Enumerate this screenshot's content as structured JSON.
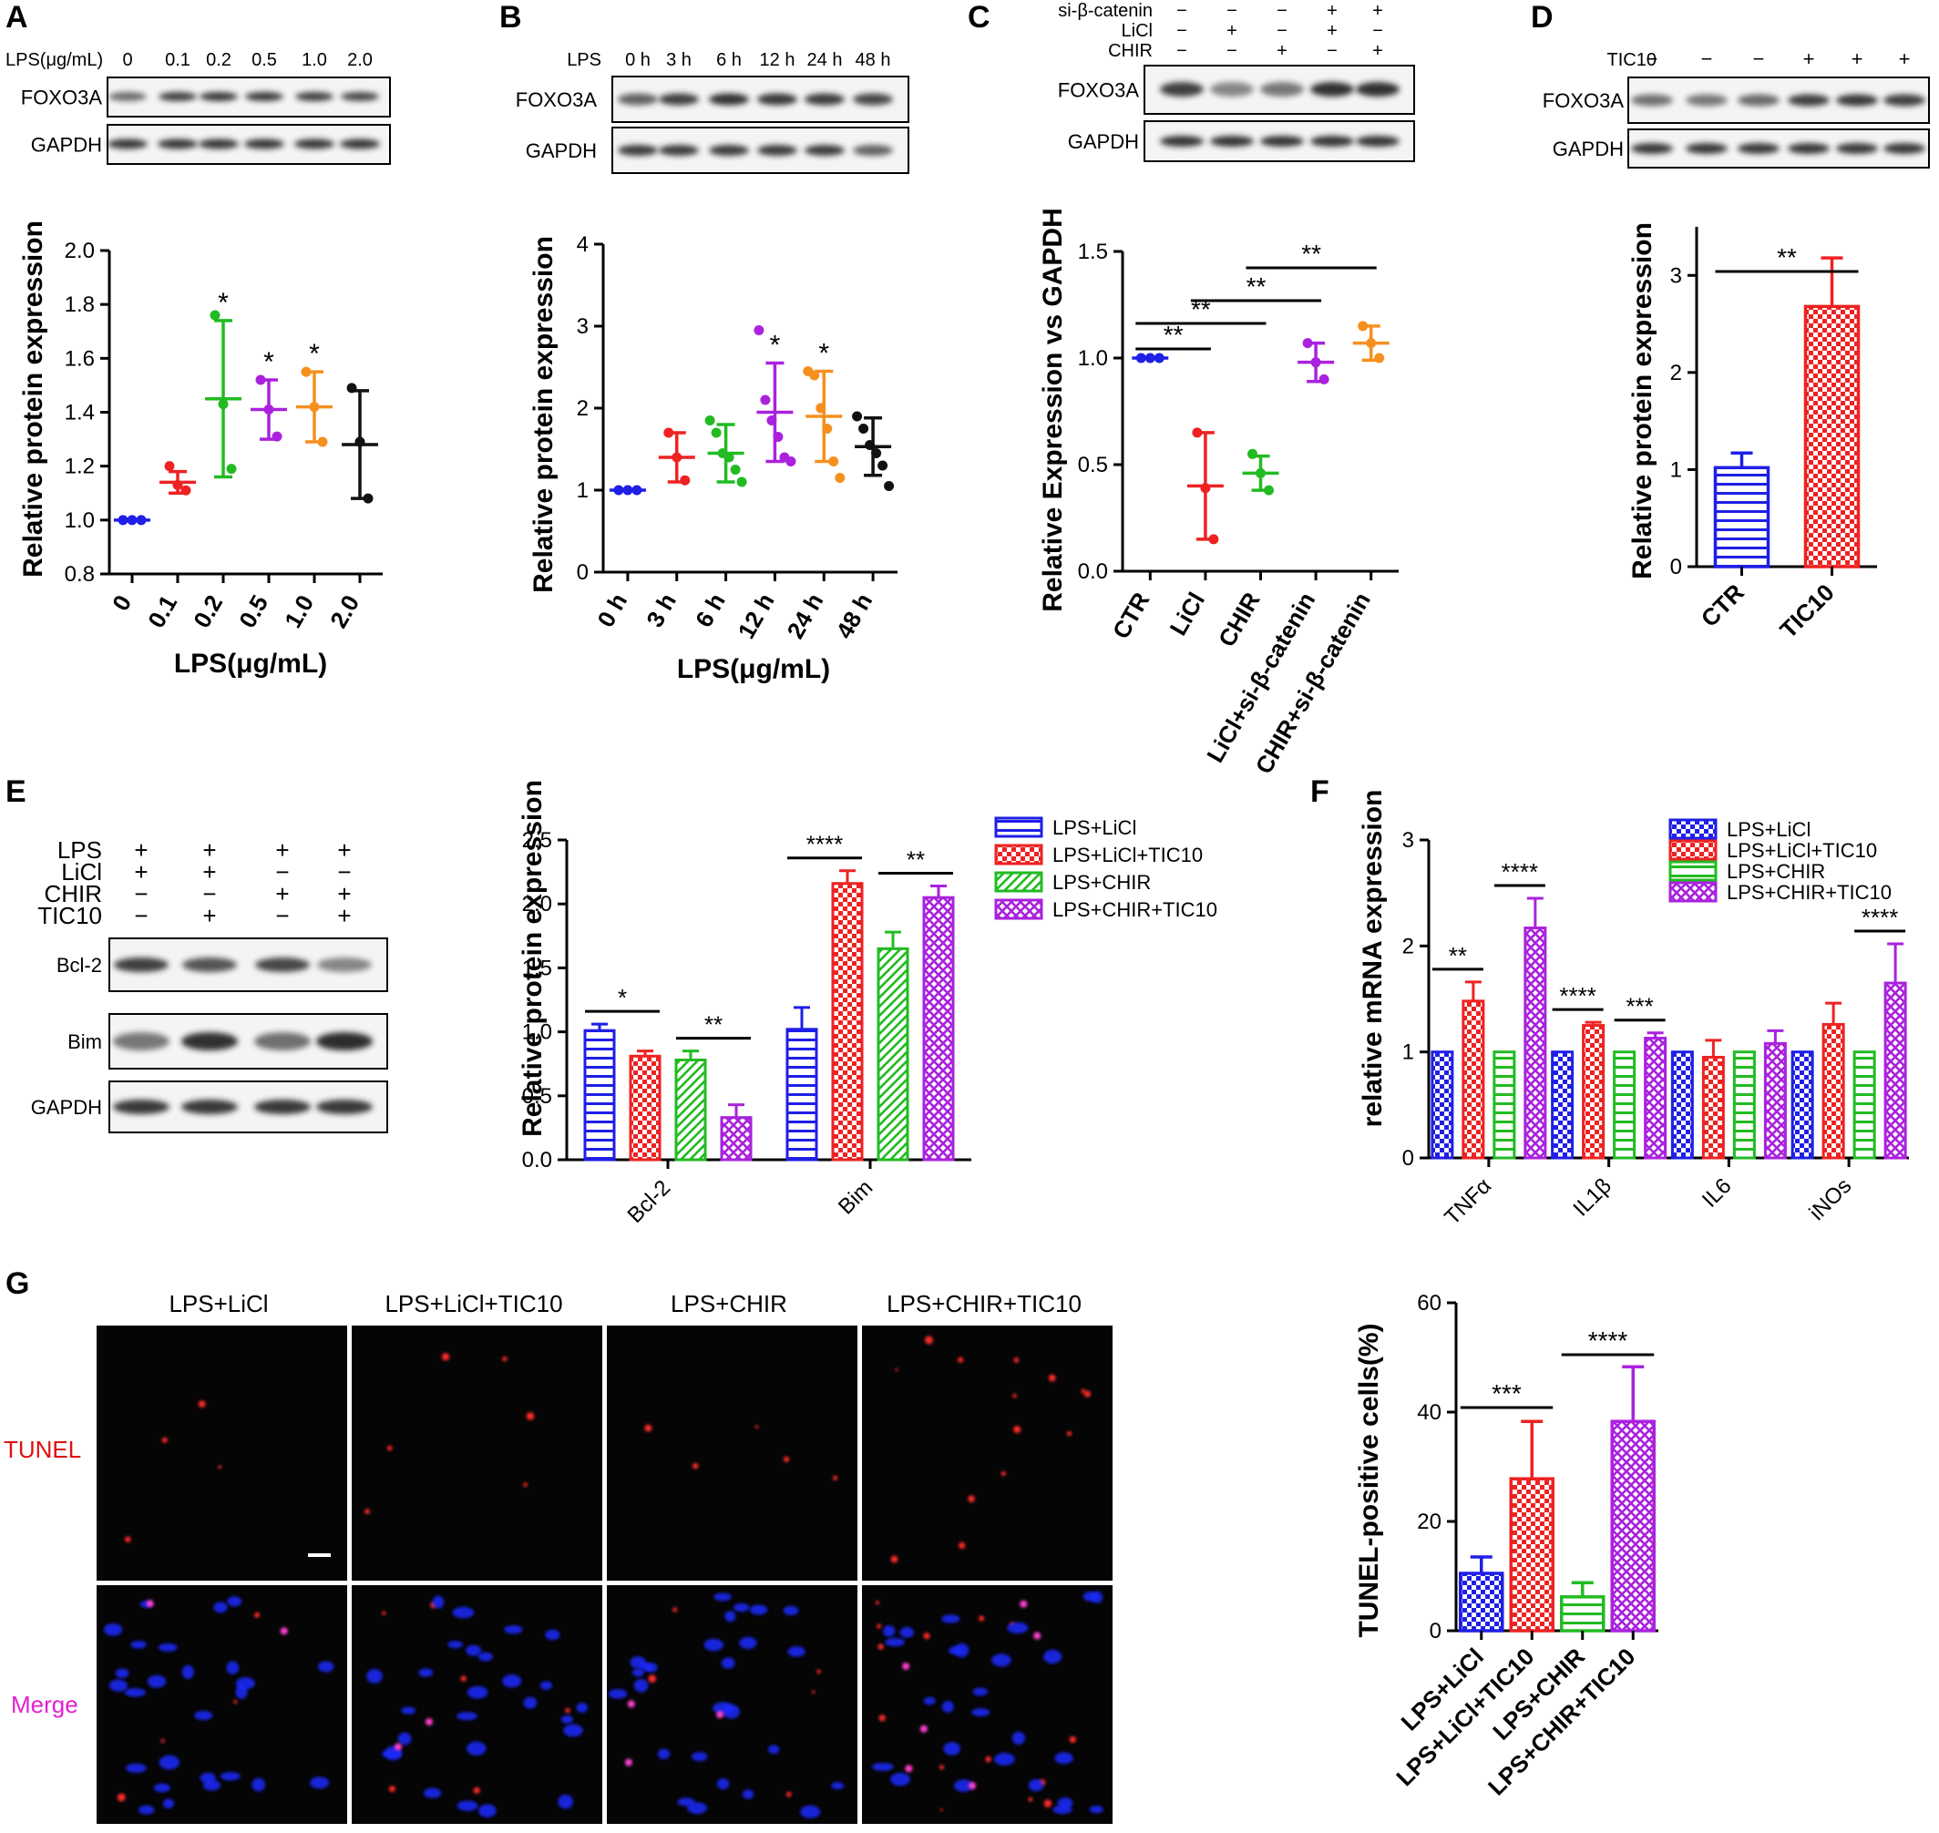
{
  "colors": {
    "blue": "#1f1fe6",
    "red": "#ee2222",
    "green": "#22bb22",
    "purple": "#aa22dd",
    "orange": "#f5901e",
    "black": "#111111",
    "bg": "#ffffff",
    "micro_bg": "#050505"
  },
  "panels": {
    "A": {
      "letter": "A",
      "blot": {
        "header_label": "LPS(μg/mL)",
        "lanes": [
          "0",
          "0.1",
          "0.2",
          "0.5",
          "1.0",
          "2.0"
        ],
        "row_labels": [
          "FOXO3A",
          "GAPDH"
        ]
      },
      "chart_data": {
        "type": "scatter",
        "ylabel": "Relative protein expression",
        "xlabel": "LPS(μg/mL)",
        "categories": [
          "0",
          "0.1",
          "0.2",
          "0.5",
          "1.0",
          "2.0"
        ],
        "ylim": [
          0.8,
          2.0
        ],
        "yticks": [
          "0.8",
          "1.0",
          "1.2",
          "1.4",
          "1.6",
          "1.8",
          "2.0"
        ],
        "means": [
          1.0,
          1.14,
          1.45,
          1.41,
          1.42,
          1.28
        ],
        "sd": [
          0.0,
          0.04,
          0.29,
          0.11,
          0.13,
          0.2
        ],
        "points": [
          [
            1.0,
            1.0,
            1.0
          ],
          [
            1.2,
            1.13,
            1.11
          ],
          [
            1.76,
            1.43,
            1.19
          ],
          [
            1.52,
            1.41,
            1.31
          ],
          [
            1.55,
            1.42,
            1.29
          ],
          [
            1.49,
            1.29,
            1.08
          ]
        ],
        "sig": [
          "",
          "",
          "*",
          "*",
          "*",
          ""
        ]
      }
    },
    "B": {
      "letter": "B",
      "blot": {
        "header_label": "LPS",
        "lanes": [
          "0 h",
          "3 h",
          "6 h",
          "12 h",
          "24 h",
          "48 h"
        ],
        "row_labels": [
          "FOXO3A",
          "GAPDH"
        ]
      },
      "chart_data": {
        "type": "scatter",
        "ylabel": "Relative protein expression",
        "xlabel": "LPS(μg/mL)",
        "categories": [
          "0 h",
          "3 h",
          "6 h",
          "12 h",
          "24 h",
          "48 h"
        ],
        "ylim": [
          0,
          4
        ],
        "yticks": [
          "0",
          "1",
          "2",
          "3",
          "4"
        ],
        "means": [
          1.0,
          1.4,
          1.45,
          1.95,
          1.9,
          1.53
        ],
        "sd": [
          0.0,
          0.3,
          0.35,
          0.6,
          0.55,
          0.35
        ],
        "points": [
          [
            1.0,
            1.0,
            1.0
          ],
          [
            1.7,
            1.4,
            1.12
          ],
          [
            1.85,
            1.7,
            1.45,
            1.4,
            1.25,
            1.1
          ],
          [
            2.95,
            2.1,
            1.85,
            1.65,
            1.4,
            1.35
          ],
          [
            2.45,
            2.4,
            2.0,
            1.75,
            1.35,
            1.15
          ],
          [
            1.9,
            1.75,
            1.55,
            1.45,
            1.3,
            1.05
          ]
        ],
        "sig": [
          "",
          "",
          "",
          "*",
          "*",
          ""
        ]
      }
    },
    "C": {
      "letter": "C",
      "blot": {
        "treat_rows": [
          {
            "label": "si-β-catenin",
            "signs": [
              "−",
              "−",
              "−",
              "+",
              "+"
            ]
          },
          {
            "label": "LiCl",
            "signs": [
              "−",
              "+",
              "−",
              "+",
              "−"
            ]
          },
          {
            "label": "CHIR",
            "signs": [
              "−",
              "−",
              "+",
              "−",
              "+"
            ]
          }
        ],
        "row_labels": [
          "FOXO3A",
          "GAPDH"
        ]
      },
      "chart_data": {
        "type": "scatter",
        "ylabel": "Relative Expression vs GAPDH",
        "categories": [
          "CTR",
          "LiCl",
          "CHIR",
          "LiCl+si-β-catenin",
          "CHIR+si-β-catenin"
        ],
        "ylim": [
          0,
          1.5
        ],
        "yticks": [
          "0.0",
          "0.5",
          "1.0",
          "1.5"
        ],
        "means": [
          1.0,
          0.4,
          0.46,
          0.98,
          1.07
        ],
        "sd": [
          0.0,
          0.25,
          0.08,
          0.09,
          0.08
        ],
        "points": [
          [
            1.0,
            1.0,
            1.0
          ],
          [
            0.65,
            0.39,
            0.15
          ],
          [
            0.55,
            0.46,
            0.38
          ],
          [
            1.07,
            0.98,
            0.9
          ],
          [
            1.15,
            1.07,
            1.0
          ]
        ],
        "brackets": [
          {
            "from": 0,
            "to": 1,
            "label": "**"
          },
          {
            "from": 0,
            "to": 2,
            "label": "**"
          },
          {
            "from": 1,
            "to": 3,
            "label": "**"
          },
          {
            "from": 2,
            "to": 4,
            "label": "**"
          }
        ]
      }
    },
    "D": {
      "letter": "D",
      "blot": {
        "header_label": "TIC10",
        "signs": [
          "−",
          "−",
          "−",
          "+",
          "+",
          "+"
        ],
        "row_labels": [
          "FOXO3A",
          "GAPDH"
        ]
      },
      "chart_data": {
        "type": "bar",
        "ylabel": "Relative protein expression",
        "categories": [
          "CTR",
          "TIC10"
        ],
        "ylim": [
          0,
          3.5
        ],
        "yticks": [
          "0",
          "1",
          "2",
          "3"
        ],
        "values": [
          1.02,
          2.68
        ],
        "sd": [
          0.15,
          0.5
        ],
        "patterns": [
          "hlines",
          "checks"
        ],
        "bar_colors": [
          "blue",
          "red"
        ],
        "brackets": [
          {
            "from": 0,
            "to": 1,
            "label": "**"
          }
        ]
      }
    },
    "E": {
      "letter": "E",
      "blot": {
        "treat_rows": [
          {
            "label": "LPS",
            "signs": [
              "+",
              "+",
              "+",
              "+"
            ]
          },
          {
            "label": "LiCl",
            "signs": [
              "+",
              "+",
              "−",
              "−"
            ]
          },
          {
            "label": "CHIR",
            "signs": [
              "−",
              "−",
              "+",
              "+"
            ]
          },
          {
            "label": "TIC10",
            "signs": [
              "−",
              "+",
              "−",
              "+"
            ]
          }
        ],
        "row_labels": [
          "Bcl-2",
          "Bim",
          "GAPDH"
        ]
      },
      "chart_data": {
        "type": "bar",
        "ylabel": "Relative protein expression",
        "categories": [
          "Bcl-2",
          "Bim"
        ],
        "ylim": [
          0,
          2.5
        ],
        "yticks": [
          "0.0",
          "0.5",
          "1.0",
          "1.5",
          "2.0",
          "2.5"
        ],
        "series": [
          {
            "name": "LPS+LiCl",
            "values": [
              1.01,
              1.02
            ],
            "sd": [
              0.05,
              0.17
            ],
            "color": "blue",
            "pattern": "hlines"
          },
          {
            "name": "LPS+LiCl+TIC10",
            "values": [
              0.81,
              2.16
            ],
            "sd": [
              0.04,
              0.1
            ],
            "color": "red",
            "pattern": "checks"
          },
          {
            "name": "LPS+CHIR",
            "values": [
              0.78,
              1.65
            ],
            "sd": [
              0.07,
              0.13
            ],
            "color": "green",
            "pattern": "diag"
          },
          {
            "name": "LPS+CHIR+TIC10",
            "values": [
              0.33,
              2.05
            ],
            "sd": [
              0.1,
              0.09
            ],
            "color": "purple",
            "pattern": "cross"
          }
        ],
        "brackets": [
          {
            "group": 0,
            "from": 0,
            "to": 1,
            "label": "*"
          },
          {
            "group": 0,
            "from": 2,
            "to": 3,
            "label": "**"
          },
          {
            "group": 1,
            "from": 0,
            "to": 1,
            "label": "****"
          },
          {
            "group": 1,
            "from": 2,
            "to": 3,
            "label": "**"
          }
        ]
      }
    },
    "F": {
      "letter": "F",
      "chart_data": {
        "type": "bar",
        "ylabel": "relative mRNA expression",
        "categories": [
          "TNFα",
          "IL1β",
          "IL6",
          "iNOs"
        ],
        "ylim": [
          0,
          3
        ],
        "yticks": [
          "0",
          "1",
          "2",
          "3"
        ],
        "series": [
          {
            "name": "LPS+LiCl",
            "values": [
              1.0,
              1.0,
              1.0,
              1.0
            ],
            "sd": [
              0,
              0,
              0,
              0
            ],
            "color": "blue",
            "pattern": "checks"
          },
          {
            "name": "LPS+LiCl+TIC10",
            "values": [
              1.48,
              1.25,
              0.95,
              1.26
            ],
            "sd": [
              0.18,
              0.03,
              0.16,
              0.2
            ],
            "color": "red",
            "pattern": "checks"
          },
          {
            "name": "LPS+CHIR",
            "values": [
              1.0,
              1.0,
              1.0,
              1.0
            ],
            "sd": [
              0,
              0,
              0,
              0
            ],
            "color": "green",
            "pattern": "hlines"
          },
          {
            "name": "LPS+CHIR+TIC10",
            "values": [
              2.17,
              1.13,
              1.08,
              1.65
            ],
            "sd": [
              0.28,
              0.05,
              0.12,
              0.37
            ],
            "color": "purple",
            "pattern": "cross"
          }
        ],
        "brackets": [
          {
            "group": 0,
            "from": 0,
            "to": 1,
            "label": "**"
          },
          {
            "group": 0,
            "from": 2,
            "to": 3,
            "label": "****"
          },
          {
            "group": 1,
            "from": 0,
            "to": 1,
            "label": "****"
          },
          {
            "group": 1,
            "from": 2,
            "to": 3,
            "label": "***"
          },
          {
            "group": 3,
            "from": 2,
            "to": 3,
            "label": "****"
          }
        ]
      }
    },
    "G": {
      "letter": "G",
      "columns": [
        "LPS+LiCl",
        "LPS+LiCl+TIC10",
        "LPS+CHIR",
        "LPS+CHIR+TIC10"
      ],
      "rows": [
        "TUNEL",
        "Merge"
      ],
      "chart_data": {
        "type": "bar",
        "ylabel": "TUNEL-positive cells(%)",
        "categories": [
          "LPS+LiCl",
          "LPS+LiCl+TIC10",
          "LPS+CHIR",
          "LPS+CHIR+TIC10"
        ],
        "ylim": [
          0,
          60
        ],
        "yticks": [
          "0",
          "20",
          "40",
          "60"
        ],
        "values": [
          10.5,
          27.8,
          6.2,
          38.3
        ],
        "sd": [
          3.0,
          10.5,
          2.6,
          10.0
        ],
        "patterns": [
          "checks",
          "checks",
          "hlines",
          "cross"
        ],
        "bar_colors": [
          "blue",
          "red",
          "green",
          "purple"
        ],
        "brackets": [
          {
            "from": 0,
            "to": 1,
            "label": "***"
          },
          {
            "from": 2,
            "to": 3,
            "label": "****"
          }
        ]
      }
    }
  }
}
